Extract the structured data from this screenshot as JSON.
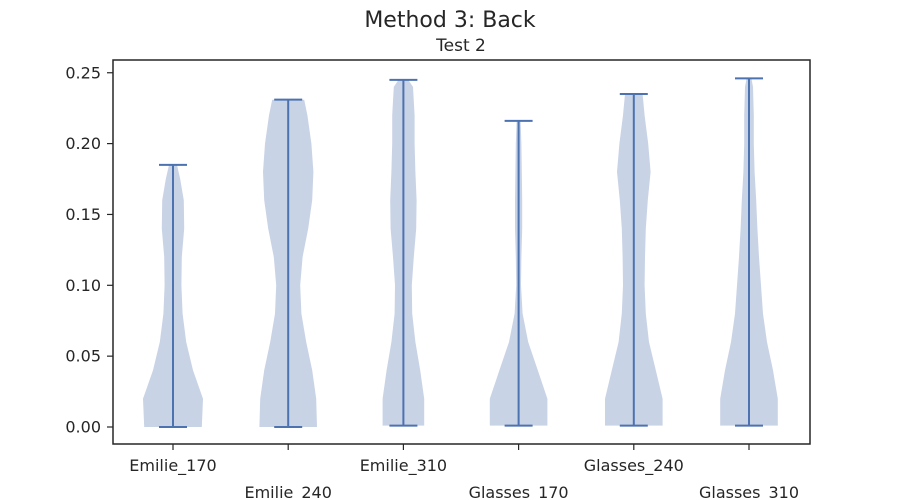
{
  "title": "Method 3: Back",
  "subtitle": "Test 2",
  "colors": {
    "violin_fill": "#c9d3e6",
    "violin_line": "#4c72b0",
    "axes": "#262626"
  },
  "chart_data": {
    "type": "violin",
    "title": "Method 3: Back",
    "subtitle": "Test 2",
    "xlabel": "",
    "ylabel": "",
    "ylim": [
      -0.012,
      0.259
    ],
    "yticks": [
      0.0,
      0.05,
      0.1,
      0.15,
      0.2,
      0.25
    ],
    "ytick_labels": [
      "0.00",
      "0.05",
      "0.10",
      "0.15",
      "0.20",
      "0.25"
    ],
    "categories": [
      "Emilie_170",
      "Emilie_240",
      "Emilie_310",
      "Glasses_170",
      "Glasses_240",
      "Glasses_310"
    ],
    "grid": false,
    "violins": [
      {
        "category": "Emilie_170",
        "min": 0.0,
        "max": 0.185,
        "density": [
          [
            0.0,
            0.72
          ],
          [
            0.02,
            0.75
          ],
          [
            0.04,
            0.5
          ],
          [
            0.06,
            0.33
          ],
          [
            0.08,
            0.24
          ],
          [
            0.1,
            0.21
          ],
          [
            0.12,
            0.22
          ],
          [
            0.14,
            0.28
          ],
          [
            0.16,
            0.27
          ],
          [
            0.175,
            0.18
          ],
          [
            0.185,
            0.1
          ]
        ]
      },
      {
        "category": "Emilie_240",
        "min": 0.0,
        "max": 0.231,
        "density": [
          [
            0.0,
            0.72
          ],
          [
            0.02,
            0.7
          ],
          [
            0.04,
            0.6
          ],
          [
            0.06,
            0.45
          ],
          [
            0.08,
            0.33
          ],
          [
            0.1,
            0.3
          ],
          [
            0.12,
            0.36
          ],
          [
            0.14,
            0.5
          ],
          [
            0.16,
            0.6
          ],
          [
            0.18,
            0.63
          ],
          [
            0.2,
            0.58
          ],
          [
            0.22,
            0.48
          ],
          [
            0.231,
            0.4
          ]
        ]
      },
      {
        "category": "Emilie_310",
        "min": 0.001,
        "max": 0.245,
        "density": [
          [
            0.001,
            0.52
          ],
          [
            0.02,
            0.52
          ],
          [
            0.04,
            0.42
          ],
          [
            0.06,
            0.3
          ],
          [
            0.08,
            0.22
          ],
          [
            0.1,
            0.21
          ],
          [
            0.12,
            0.26
          ],
          [
            0.14,
            0.32
          ],
          [
            0.16,
            0.33
          ],
          [
            0.18,
            0.3
          ],
          [
            0.2,
            0.28
          ],
          [
            0.22,
            0.28
          ],
          [
            0.24,
            0.24
          ],
          [
            0.245,
            0.12
          ]
        ]
      },
      {
        "category": "Glasses_170",
        "min": 0.001,
        "max": 0.216,
        "density": [
          [
            0.001,
            0.72
          ],
          [
            0.02,
            0.72
          ],
          [
            0.04,
            0.48
          ],
          [
            0.06,
            0.24
          ],
          [
            0.08,
            0.1
          ],
          [
            0.1,
            0.06
          ],
          [
            0.12,
            0.07
          ],
          [
            0.14,
            0.09
          ],
          [
            0.16,
            0.09
          ],
          [
            0.18,
            0.08
          ],
          [
            0.2,
            0.07
          ],
          [
            0.216,
            0.05
          ]
        ]
      },
      {
        "category": "Glasses_240",
        "min": 0.001,
        "max": 0.235,
        "density": [
          [
            0.001,
            0.72
          ],
          [
            0.02,
            0.72
          ],
          [
            0.04,
            0.55
          ],
          [
            0.06,
            0.38
          ],
          [
            0.08,
            0.3
          ],
          [
            0.1,
            0.27
          ],
          [
            0.12,
            0.28
          ],
          [
            0.14,
            0.3
          ],
          [
            0.16,
            0.35
          ],
          [
            0.18,
            0.42
          ],
          [
            0.2,
            0.36
          ],
          [
            0.22,
            0.27
          ],
          [
            0.235,
            0.22
          ]
        ]
      },
      {
        "category": "Glasses_310",
        "min": 0.001,
        "max": 0.246,
        "density": [
          [
            0.001,
            0.72
          ],
          [
            0.02,
            0.72
          ],
          [
            0.04,
            0.6
          ],
          [
            0.06,
            0.45
          ],
          [
            0.08,
            0.35
          ],
          [
            0.1,
            0.3
          ],
          [
            0.12,
            0.25
          ],
          [
            0.14,
            0.21
          ],
          [
            0.16,
            0.18
          ],
          [
            0.18,
            0.14
          ],
          [
            0.2,
            0.12
          ],
          [
            0.22,
            0.12
          ],
          [
            0.24,
            0.1
          ],
          [
            0.246,
            0.06
          ]
        ]
      }
    ]
  }
}
